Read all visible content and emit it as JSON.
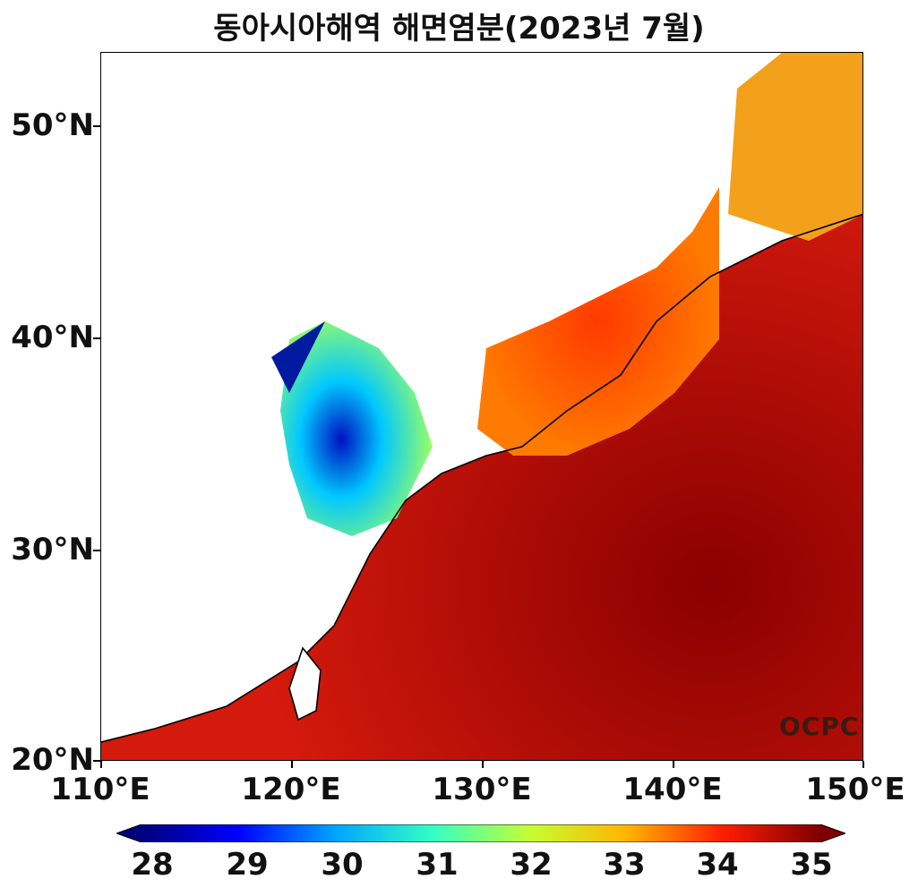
{
  "title": "동아시아해역 해면염분(2023년 7월)",
  "watermark": "OCPC",
  "y_ticks": [
    "50°N",
    "40°N",
    "30°N",
    "20°N"
  ],
  "x_ticks": [
    "110°E",
    "120°E",
    "130°E",
    "140°E",
    "150°E"
  ],
  "colorbar": {
    "ticks": [
      "28",
      "29",
      "30",
      "31",
      "32",
      "33",
      "34",
      "35"
    ],
    "colors": [
      "#00007f",
      "#0000ff",
      "#00a5ff",
      "#33ffc4",
      "#c4ff33",
      "#ffb600",
      "#ff1d00",
      "#7f0000"
    ]
  }
}
